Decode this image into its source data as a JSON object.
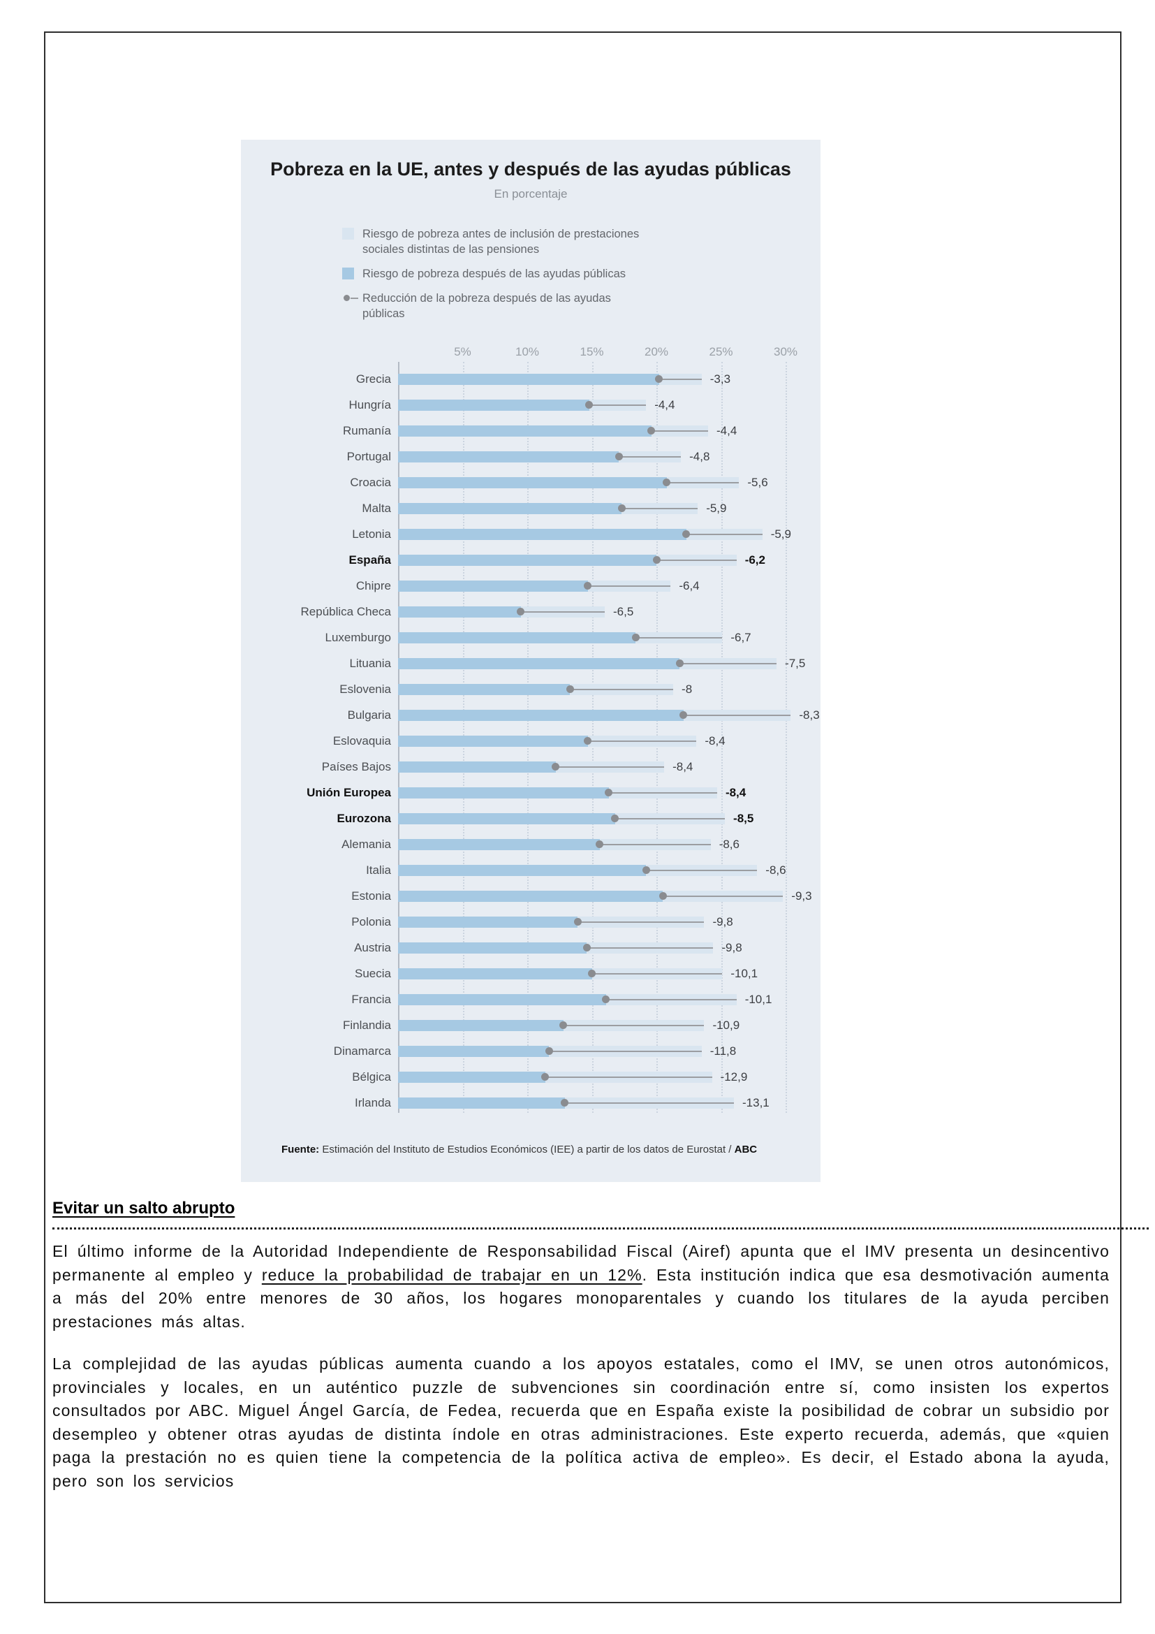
{
  "chart": {
    "title": "Pobreza en la UE, antes y después de las ayudas públicas",
    "subtitle": "En porcentaje",
    "legend": [
      {
        "label": "Riesgo de pobreza antes de inclusión de prestaciones sociales distintas de las pensiones",
        "swatch": "light"
      },
      {
        "label": "Riesgo de pobreza después de las ayudas públicas",
        "swatch": "dark"
      },
      {
        "label": "Reducción de la pobreza después de las ayudas públicas",
        "swatch": "dot"
      }
    ],
    "source_bold": "Fuente:",
    "source_text": " Estimación del Instituto de Estudios Económicos (IEE) a partir de los datos de Eurostat / ",
    "source_abc": "ABC",
    "colors": {
      "background": "#e8edf3",
      "bar_before": "#d9e5f0",
      "bar_after": "#a6c9e3",
      "reduction_marker": "#8a8c90"
    }
  },
  "chart_data": {
    "type": "bar",
    "orientation": "horizontal",
    "title": "Pobreza en la UE, antes y después de las ayudas públicas",
    "subtitle": "En porcentaje",
    "unit": "%",
    "x_ticks": [
      "5%",
      "10%",
      "15%",
      "20%",
      "25%",
      "30%"
    ],
    "xlim": [
      0,
      32
    ],
    "grid": "dotted-vertical",
    "legend_position": "top-left",
    "categories": [
      "Grecia",
      "Hungría",
      "Rumanía",
      "Portugal",
      "Croacia",
      "Malta",
      "Letonia",
      "España",
      "Chipre",
      "República Checa",
      "Luxemburgo",
      "Lituania",
      "Eslovenia",
      "Bulgaria",
      "Eslovaquia",
      "Países Bajos",
      "Unión Europea",
      "Eurozona",
      "Alemania",
      "Italia",
      "Estonia",
      "Polonia",
      "Austria",
      "Suecia",
      "Francia",
      "Finlandia",
      "Dinamarca",
      "Bélgica",
      "Irlanda"
    ],
    "series": [
      {
        "name": "Riesgo de pobreza antes de inclusión de prestaciones sociales distintas de las pensiones",
        "values": [
          23.5,
          19.2,
          24.0,
          21.9,
          26.4,
          23.2,
          28.2,
          26.2,
          21.1,
          16.0,
          25.1,
          29.3,
          21.3,
          30.4,
          23.1,
          20.6,
          24.7,
          25.3,
          24.2,
          27.8,
          29.8,
          23.7,
          24.4,
          25.1,
          26.2,
          23.7,
          23.5,
          24.3,
          26.0
        ]
      },
      {
        "name": "Riesgo de pobreza después de las ayudas públicas",
        "values": [
          20.2,
          14.8,
          19.6,
          17.1,
          20.8,
          17.3,
          22.3,
          20.0,
          14.7,
          9.5,
          18.4,
          21.8,
          13.3,
          22.1,
          14.7,
          12.2,
          16.3,
          16.8,
          15.6,
          19.2,
          20.5,
          13.9,
          14.6,
          15.0,
          16.1,
          12.8,
          11.7,
          11.4,
          12.9
        ]
      },
      {
        "name": "Reducción de la pobreza después de las ayudas públicas",
        "values": [
          -3.3,
          -4.4,
          -4.4,
          -4.8,
          -5.6,
          -5.9,
          -5.9,
          -6.2,
          -6.4,
          -6.5,
          -6.7,
          -7.5,
          -8.0,
          -8.3,
          -8.4,
          -8.4,
          -8.4,
          -8.5,
          -8.6,
          -8.6,
          -9.3,
          -9.8,
          -9.8,
          -10.1,
          -10.1,
          -10.9,
          -11.8,
          -12.9,
          -13.1
        ]
      }
    ],
    "reduction_labels": [
      "-3,3",
      "-4,4",
      "-4,4",
      "-4,8",
      "-5,6",
      "-5,9",
      "-5,9",
      "-6,2",
      "-6,4",
      "-6,5",
      "-6,7",
      "-7,5",
      "-8",
      "-8,3",
      "-8,4",
      "-8,4",
      "-8,4",
      "-8,5",
      "-8,6",
      "-8,6",
      "-9,3",
      "-9,8",
      "-9,8",
      "-10,1",
      "-10,1",
      "-10,9",
      "-11,8",
      "-12,9",
      "-13,1"
    ],
    "bold_categories": [
      "España",
      "Unión Europea",
      "Eurozona"
    ]
  },
  "article": {
    "heading": "Evitar un salto abrupto",
    "p1_before": "El último informe de la Autoridad Independiente de Responsabilidad Fiscal (Airef) apunta que el IMV presenta un desincentivo permanente al empleo y ",
    "p1_underlined": "reduce la probabilidad de trabajar en un 12%",
    "p1_after": ". Esta institución indica que esa desmotivación aumenta a más del 20% entre menores de 30 años, los hogares monoparentales y cuando los titulares de la ayuda perciben prestaciones más altas.",
    "p2": "La complejidad de las ayudas públicas aumenta cuando a los apoyos estatales, como el IMV, se unen otros autonómicos, provinciales y locales, en un auténtico puzzle de subvenciones sin coordinación entre sí, como insisten los expertos consultados por ABC. Miguel Ángel García, de Fedea, recuerda que en España existe la posibilidad de cobrar un subsidio por desempleo y obtener otras ayudas de distinta índole en otras administraciones. Este experto recuerda, además, que «quien paga la prestación no es quien tiene la competencia de la política activa de empleo». Es decir, el Estado abona la ayuda, pero son los servicios"
  }
}
